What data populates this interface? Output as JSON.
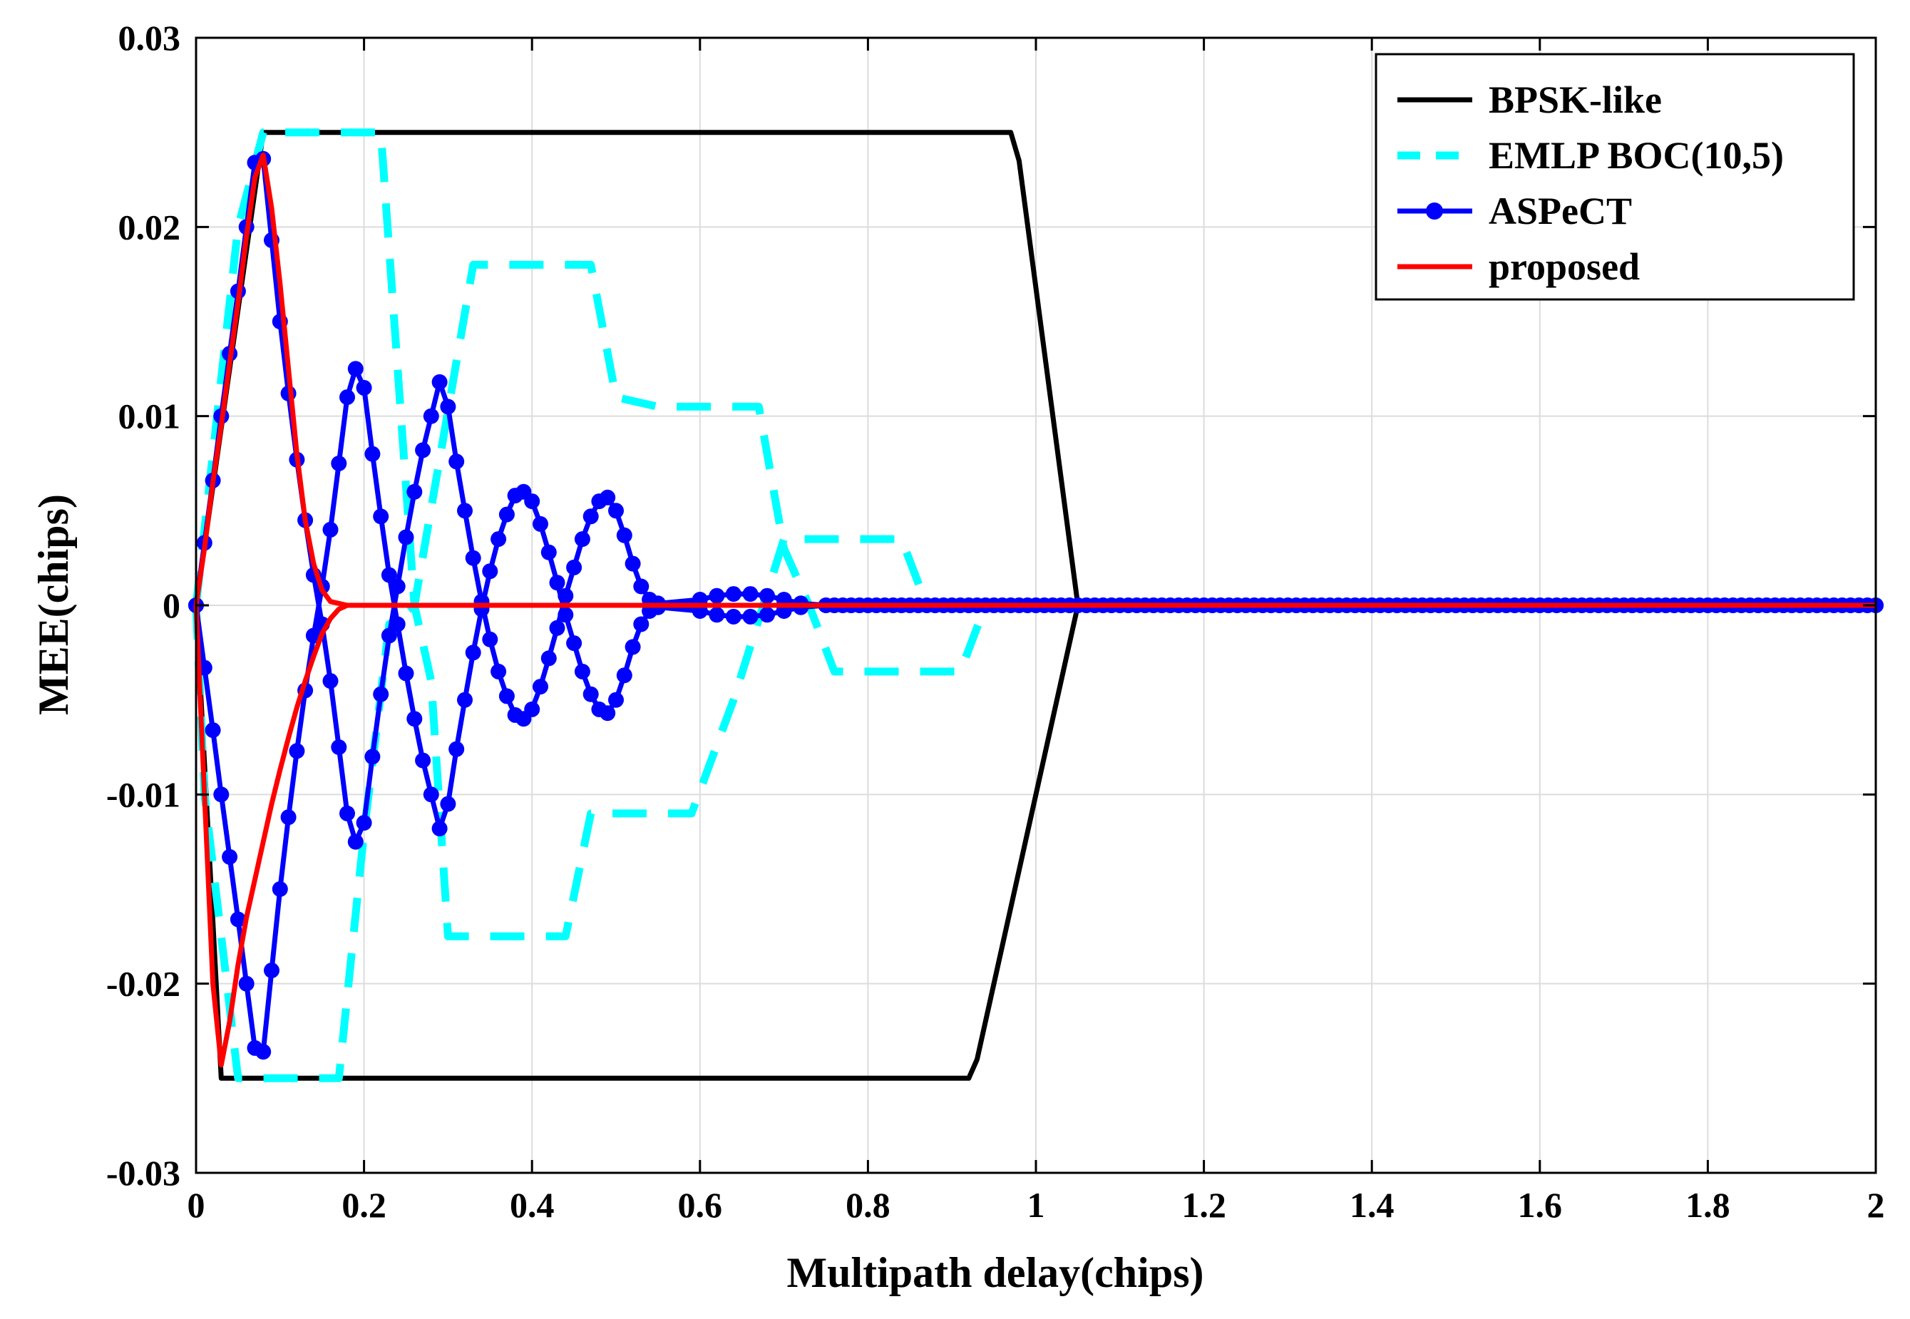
{
  "chart_data": {
    "type": "line",
    "title": "",
    "xlabel": "Multipath delay(chips)",
    "ylabel": "MEE(chips)",
    "xlim": [
      0,
      2
    ],
    "ylim": [
      -0.03,
      0.03
    ],
    "xticks": [
      "0",
      "0.2",
      "0.4",
      "0.6",
      "0.8",
      "1",
      "1.2",
      "1.4",
      "1.6",
      "1.8",
      "2"
    ],
    "yticks": [
      "-0.03",
      "-0.02",
      "-0.01",
      "0",
      "0.01",
      "0.02",
      "0.03"
    ],
    "grid": true,
    "legend_position": "top-right",
    "colors": {
      "bpsk": "#000000",
      "emlp": "#00ffff",
      "aspect": "#0000ff",
      "proposed": "#ff0000",
      "grid": "#dcdcdc"
    },
    "legend": [
      "BPSK-like",
      "EMLP BOC(10,5)",
      "ASPeCT",
      "proposed"
    ],
    "series": [
      {
        "name": "BPSK-like",
        "style": "solid",
        "upper": [
          [
            0,
            0
          ],
          [
            0.08,
            0.025
          ],
          [
            0.97,
            0.025
          ],
          [
            0.98,
            0.0235
          ],
          [
            1.05,
            0
          ],
          [
            2,
            0
          ]
        ],
        "lower": [
          [
            0,
            0
          ],
          [
            0.03,
            -0.025
          ],
          [
            0.92,
            -0.025
          ],
          [
            0.93,
            -0.024
          ],
          [
            1.05,
            0
          ],
          [
            2,
            0
          ]
        ]
      },
      {
        "name": "EMLP BOC(10,5)",
        "style": "dashed",
        "upper": [
          [
            0,
            0
          ],
          [
            0.05,
            0.02
          ],
          [
            0.08,
            0.025
          ],
          [
            0.22,
            0.025
          ],
          [
            0.26,
            0
          ],
          [
            0.28,
            -0.004
          ],
          [
            0.3,
            -0.0175
          ],
          [
            0.44,
            -0.0175
          ],
          [
            0.47,
            -0.011
          ],
          [
            0.53,
            -0.011
          ],
          [
            0.59,
            -0.011
          ],
          [
            0.64,
            -0.005
          ],
          [
            0.7,
            0.0035
          ],
          [
            0.84,
            0.0035
          ],
          [
            0.87,
            0
          ],
          [
            2,
            0
          ]
        ],
        "lower": [
          [
            0,
            0
          ],
          [
            0.01,
            -0.01
          ],
          [
            0.05,
            -0.025
          ],
          [
            0.17,
            -0.025
          ],
          [
            0.2,
            -0.012
          ],
          [
            0.23,
            -0.001
          ],
          [
            0.26,
            0
          ],
          [
            0.33,
            0.018
          ],
          [
            0.47,
            0.018
          ],
          [
            0.5,
            0.011
          ],
          [
            0.55,
            0.0105
          ],
          [
            0.67,
            0.0105
          ],
          [
            0.7,
            0.003
          ],
          [
            0.73,
            0
          ],
          [
            0.76,
            -0.0035
          ],
          [
            0.91,
            -0.0035
          ],
          [
            0.94,
            0
          ],
          [
            2,
            0
          ]
        ]
      },
      {
        "name": "ASPeCT",
        "style": "solid-marker",
        "upper": [
          [
            0,
            0
          ],
          [
            0.01,
            0.0033
          ],
          [
            0.02,
            0.0066
          ],
          [
            0.03,
            0.01
          ],
          [
            0.04,
            0.0133
          ],
          [
            0.05,
            0.0166
          ],
          [
            0.06,
            0.02
          ],
          [
            0.07,
            0.0234
          ],
          [
            0.08,
            0.0236
          ],
          [
            0.09,
            0.0193
          ],
          [
            0.1,
            0.015
          ],
          [
            0.11,
            0.0112
          ],
          [
            0.12,
            0.0077
          ],
          [
            0.13,
            0.0045
          ],
          [
            0.14,
            0.0016
          ],
          [
            0.15,
            -0.001
          ],
          [
            0.16,
            -0.004
          ],
          [
            0.17,
            -0.0075
          ],
          [
            0.18,
            -0.011
          ],
          [
            0.19,
            -0.0125
          ],
          [
            0.2,
            -0.0115
          ],
          [
            0.21,
            -0.008
          ],
          [
            0.22,
            -0.0047
          ],
          [
            0.23,
            -0.0016
          ],
          [
            0.24,
            0.001
          ],
          [
            0.25,
            0.0036
          ],
          [
            0.26,
            0.006
          ],
          [
            0.27,
            0.0082
          ],
          [
            0.28,
            0.01
          ],
          [
            0.29,
            0.0118
          ],
          [
            0.3,
            0.0105
          ],
          [
            0.31,
            0.0076
          ],
          [
            0.32,
            0.005
          ],
          [
            0.33,
            0.0025
          ],
          [
            0.34,
            0.0002
          ],
          [
            0.35,
            -0.0018
          ],
          [
            0.36,
            -0.0035
          ],
          [
            0.37,
            -0.0048
          ],
          [
            0.38,
            -0.0058
          ],
          [
            0.39,
            -0.006
          ],
          [
            0.4,
            -0.0055
          ],
          [
            0.41,
            -0.0043
          ],
          [
            0.42,
            -0.0028
          ],
          [
            0.43,
            -0.0012
          ],
          [
            0.44,
            0.0005
          ],
          [
            0.45,
            0.002
          ],
          [
            0.46,
            0.0035
          ],
          [
            0.47,
            0.0047
          ],
          [
            0.48,
            0.0055
          ],
          [
            0.49,
            0.0057
          ],
          [
            0.5,
            0.005
          ],
          [
            0.51,
            0.0037
          ],
          [
            0.52,
            0.0022
          ],
          [
            0.53,
            0.001
          ],
          [
            0.54,
            0.0003
          ],
          [
            0.55,
            0.0001
          ],
          [
            0.6,
            0.0003
          ],
          [
            0.62,
            0.0005
          ],
          [
            0.64,
            0.0006
          ],
          [
            0.66,
            0.0006
          ],
          [
            0.68,
            0.0005
          ],
          [
            0.7,
            0.0003
          ],
          [
            0.72,
            0.0001
          ],
          [
            0.75,
            0
          ],
          [
            2,
            0
          ]
        ],
        "lower": [
          [
            0,
            0
          ],
          [
            0.01,
            -0.0033
          ],
          [
            0.02,
            -0.0066
          ],
          [
            0.03,
            -0.01
          ],
          [
            0.04,
            -0.0133
          ],
          [
            0.05,
            -0.0166
          ],
          [
            0.06,
            -0.02
          ],
          [
            0.07,
            -0.0234
          ],
          [
            0.08,
            -0.0236
          ],
          [
            0.09,
            -0.0193
          ],
          [
            0.1,
            -0.015
          ],
          [
            0.11,
            -0.0112
          ],
          [
            0.12,
            -0.0077
          ],
          [
            0.13,
            -0.0045
          ],
          [
            0.14,
            -0.0016
          ],
          [
            0.15,
            0.001
          ],
          [
            0.16,
            0.004
          ],
          [
            0.17,
            0.0075
          ],
          [
            0.18,
            0.011
          ],
          [
            0.19,
            0.0125
          ],
          [
            0.2,
            0.0115
          ],
          [
            0.21,
            0.008
          ],
          [
            0.22,
            0.0047
          ],
          [
            0.23,
            0.0016
          ],
          [
            0.24,
            -0.001
          ],
          [
            0.25,
            -0.0036
          ],
          [
            0.26,
            -0.006
          ],
          [
            0.27,
            -0.0082
          ],
          [
            0.28,
            -0.01
          ],
          [
            0.29,
            -0.0118
          ],
          [
            0.3,
            -0.0105
          ],
          [
            0.31,
            -0.0076
          ],
          [
            0.32,
            -0.005
          ],
          [
            0.33,
            -0.0025
          ],
          [
            0.34,
            -0.0002
          ],
          [
            0.35,
            0.0018
          ],
          [
            0.36,
            0.0035
          ],
          [
            0.37,
            0.0048
          ],
          [
            0.38,
            0.0058
          ],
          [
            0.39,
            0.006
          ],
          [
            0.4,
            0.0055
          ],
          [
            0.41,
            0.0043
          ],
          [
            0.42,
            0.0028
          ],
          [
            0.43,
            0.0012
          ],
          [
            0.44,
            -0.0005
          ],
          [
            0.45,
            -0.002
          ],
          [
            0.46,
            -0.0035
          ],
          [
            0.47,
            -0.0047
          ],
          [
            0.48,
            -0.0055
          ],
          [
            0.49,
            -0.0057
          ],
          [
            0.5,
            -0.005
          ],
          [
            0.51,
            -0.0037
          ],
          [
            0.52,
            -0.0022
          ],
          [
            0.53,
            -0.001
          ],
          [
            0.54,
            -0.0003
          ],
          [
            0.55,
            -0.0001
          ],
          [
            0.6,
            -0.0003
          ],
          [
            0.62,
            -0.0005
          ],
          [
            0.64,
            -0.0006
          ],
          [
            0.66,
            -0.0006
          ],
          [
            0.68,
            -0.0005
          ],
          [
            0.7,
            -0.0003
          ],
          [
            0.72,
            -0.0001
          ],
          [
            0.75,
            0
          ],
          [
            2,
            0
          ]
        ]
      },
      {
        "name": "proposed",
        "style": "solid",
        "upper": [
          [
            0,
            0
          ],
          [
            0.01,
            0.003
          ],
          [
            0.02,
            0.0065
          ],
          [
            0.03,
            0.0095
          ],
          [
            0.04,
            0.0128
          ],
          [
            0.05,
            0.016
          ],
          [
            0.06,
            0.0195
          ],
          [
            0.07,
            0.0226
          ],
          [
            0.08,
            0.0238
          ],
          [
            0.09,
            0.021
          ],
          [
            0.1,
            0.017
          ],
          [
            0.11,
            0.0125
          ],
          [
            0.12,
            0.008
          ],
          [
            0.13,
            0.0045
          ],
          [
            0.14,
            0.0022
          ],
          [
            0.15,
            0.0008
          ],
          [
            0.16,
            0.0002
          ],
          [
            0.18,
            0
          ],
          [
            2,
            0
          ]
        ],
        "lower": [
          [
            0,
            0
          ],
          [
            0.01,
            -0.01
          ],
          [
            0.02,
            -0.02
          ],
          [
            0.03,
            -0.0243
          ],
          [
            0.04,
            -0.022
          ],
          [
            0.05,
            -0.019
          ],
          [
            0.06,
            -0.0165
          ],
          [
            0.07,
            -0.0145
          ],
          [
            0.08,
            -0.0125
          ],
          [
            0.09,
            -0.0105
          ],
          [
            0.1,
            -0.0087
          ],
          [
            0.11,
            -0.007
          ],
          [
            0.12,
            -0.0054
          ],
          [
            0.13,
            -0.004
          ],
          [
            0.14,
            -0.0027
          ],
          [
            0.15,
            -0.0015
          ],
          [
            0.16,
            -0.0007
          ],
          [
            0.17,
            -0.0002
          ],
          [
            0.18,
            0
          ],
          [
            2,
            0
          ]
        ]
      }
    ]
  }
}
